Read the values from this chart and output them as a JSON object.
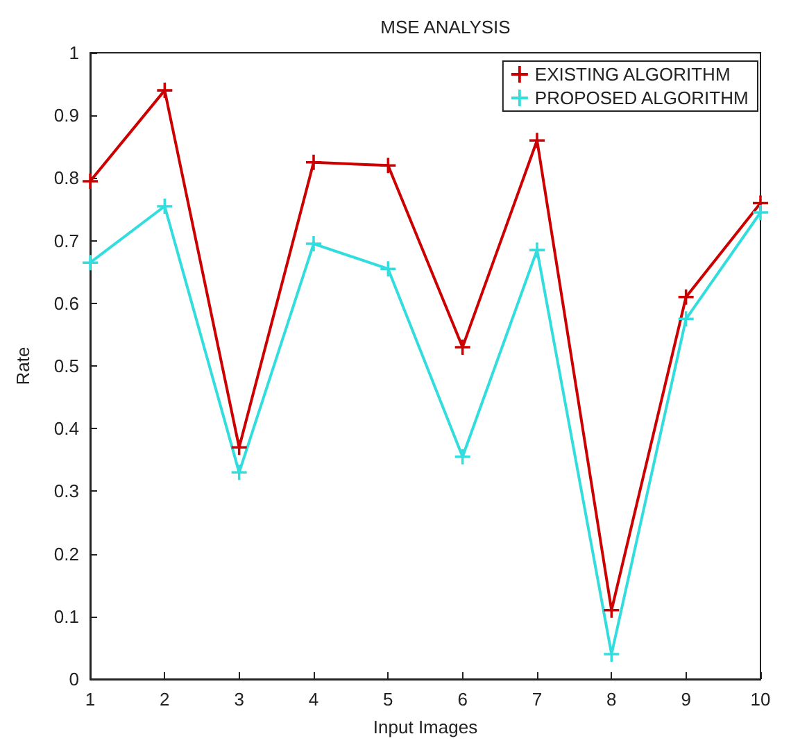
{
  "chart_data": {
    "type": "line",
    "title": "MSE ANALYSIS",
    "xlabel": "Input Images",
    "ylabel": "Rate",
    "x": [
      1,
      2,
      3,
      4,
      5,
      6,
      7,
      8,
      9,
      10
    ],
    "series": [
      {
        "name": "EXISTING ALGORITHM",
        "color": "#cc0000",
        "values": [
          0.795,
          0.94,
          0.37,
          0.825,
          0.82,
          0.53,
          0.86,
          0.11,
          0.61,
          0.76
        ]
      },
      {
        "name": "PROPOSED ALGORITHM",
        "color": "#33dddd",
        "values": [
          0.665,
          0.755,
          0.33,
          0.695,
          0.655,
          0.355,
          0.685,
          0.04,
          0.575,
          0.745
        ]
      }
    ],
    "xlim": [
      1,
      10
    ],
    "xticks": [
      1,
      2,
      3,
      4,
      5,
      6,
      7,
      8,
      9,
      10
    ],
    "ylim": [
      0,
      1
    ],
    "yticks": [
      0,
      0.1,
      0.2,
      0.3,
      0.4,
      0.5,
      0.6,
      0.7,
      0.8,
      0.9,
      1
    ],
    "grid": false,
    "legend": "top right",
    "marker": "cross",
    "line_style": "solid"
  }
}
